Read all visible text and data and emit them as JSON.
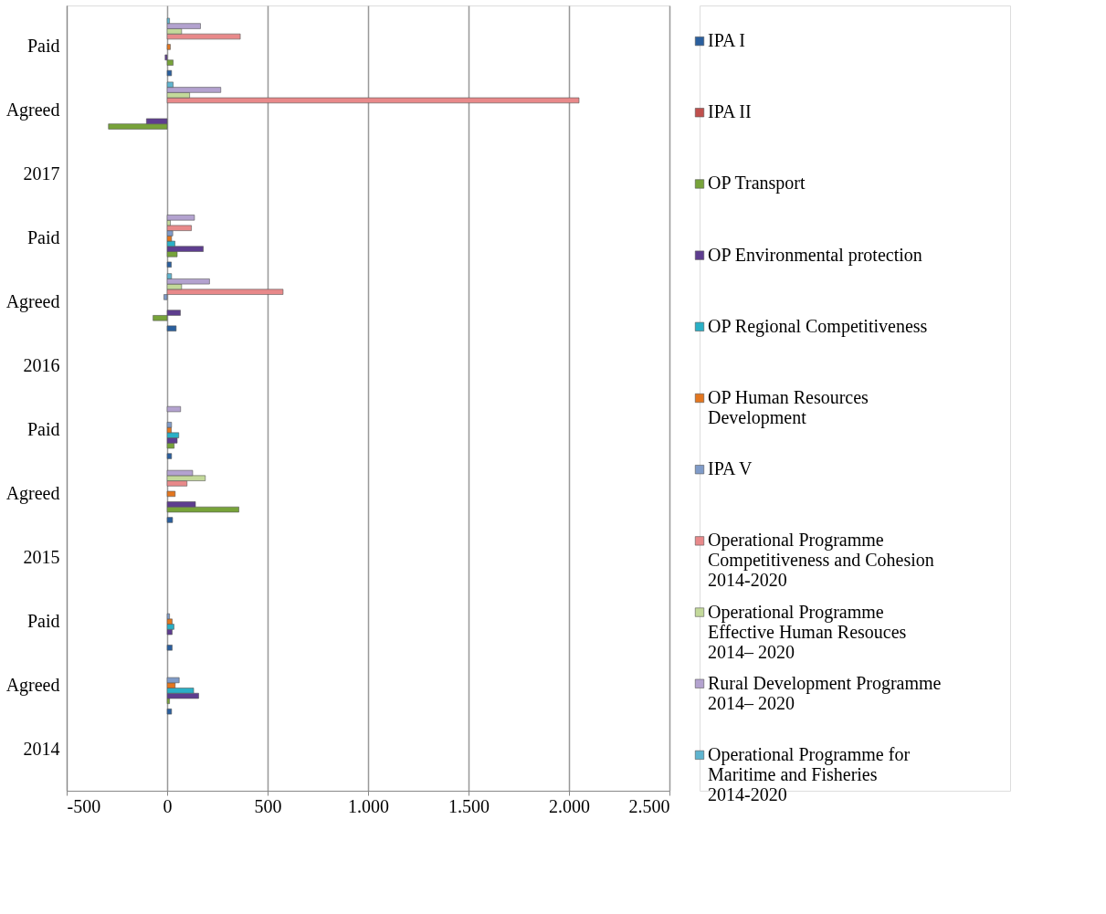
{
  "chart_data": {
    "type": "bar",
    "orientation": "horizontal",
    "categories": [
      "Paid",
      "Agreed",
      "2017",
      "Paid",
      "Agreed",
      "2016",
      "Paid",
      "Agreed",
      "2015",
      "Paid",
      "Agreed",
      "2014"
    ],
    "series": [
      {
        "name": "IPA I",
        "color": "#2a5f9e",
        "values": [
          22,
          null,
          null,
          21,
          45,
          null,
          22,
          27,
          null,
          25,
          22,
          null
        ]
      },
      {
        "name": "IPA II",
        "color": "#c0504d",
        "values": [
          null,
          null,
          null,
          null,
          null,
          null,
          null,
          null,
          null,
          null,
          null,
          null
        ]
      },
      {
        "name": "OP Transport",
        "color": "#77a33a",
        "values": [
          30,
          -292,
          null,
          50,
          -70,
          null,
          35,
          357,
          null,
          null,
          12,
          null
        ]
      },
      {
        "name": "OP Environmental protection",
        "color": "#5e3d8f",
        "values": [
          -10,
          -103,
          null,
          180,
          66,
          null,
          50,
          141,
          null,
          25,
          157,
          null
        ]
      },
      {
        "name": "OP Regional Competitiveness",
        "color": "#2ab0c6",
        "values": [
          null,
          null,
          null,
          39,
          null,
          null,
          58,
          null,
          null,
          34,
          132,
          null
        ]
      },
      {
        "name": "OP Human Resources Development",
        "color": "#e3761f",
        "values": [
          16,
          null,
          null,
          22,
          null,
          null,
          21,
          40,
          null,
          25,
          40,
          null
        ]
      },
      {
        "name": "IPA V",
        "color": "#7f9bc8",
        "values": [
          null,
          null,
          null,
          28,
          -16,
          null,
          22,
          null,
          null,
          12,
          60,
          null
        ]
      },
      {
        "name": "Operational Programme Competitiveness and Cohesion 2014-2020",
        "color": "#e8898a",
        "values": [
          364,
          2050,
          null,
          121,
          577,
          null,
          null,
          99,
          null,
          null,
          null,
          null
        ]
      },
      {
        "name": "Operational Programme Effective Human Resouces 2014– 2020",
        "color": "#c3d99a",
        "values": [
          72,
          112,
          null,
          16,
          72,
          null,
          null,
          190,
          null,
          null,
          null,
          null
        ]
      },
      {
        "name": "Rural Development Programme 2014– 2020",
        "color": "#b3a2cf",
        "values": [
          166,
          267,
          null,
          136,
          211,
          null,
          67,
          127,
          null,
          null,
          null,
          null
        ]
      },
      {
        "name": "Operational Programme for Maritime and Fisheries 2014-2020",
        "color": "#5fb4cf",
        "values": [
          12,
          30,
          null,
          null,
          22,
          null,
          null,
          null,
          null,
          null,
          null,
          null
        ]
      }
    ],
    "xlim": [
      -500,
      2500
    ],
    "xticks": [
      -500,
      0,
      500,
      {
        "value": 1000,
        "label": "1.000"
      },
      {
        "value": 1500,
        "label": "1.500"
      },
      {
        "value": 2000,
        "label": "2.000"
      },
      {
        "value": 2500,
        "label": "2.500"
      }
    ],
    "grid": "x",
    "legend": "right"
  }
}
